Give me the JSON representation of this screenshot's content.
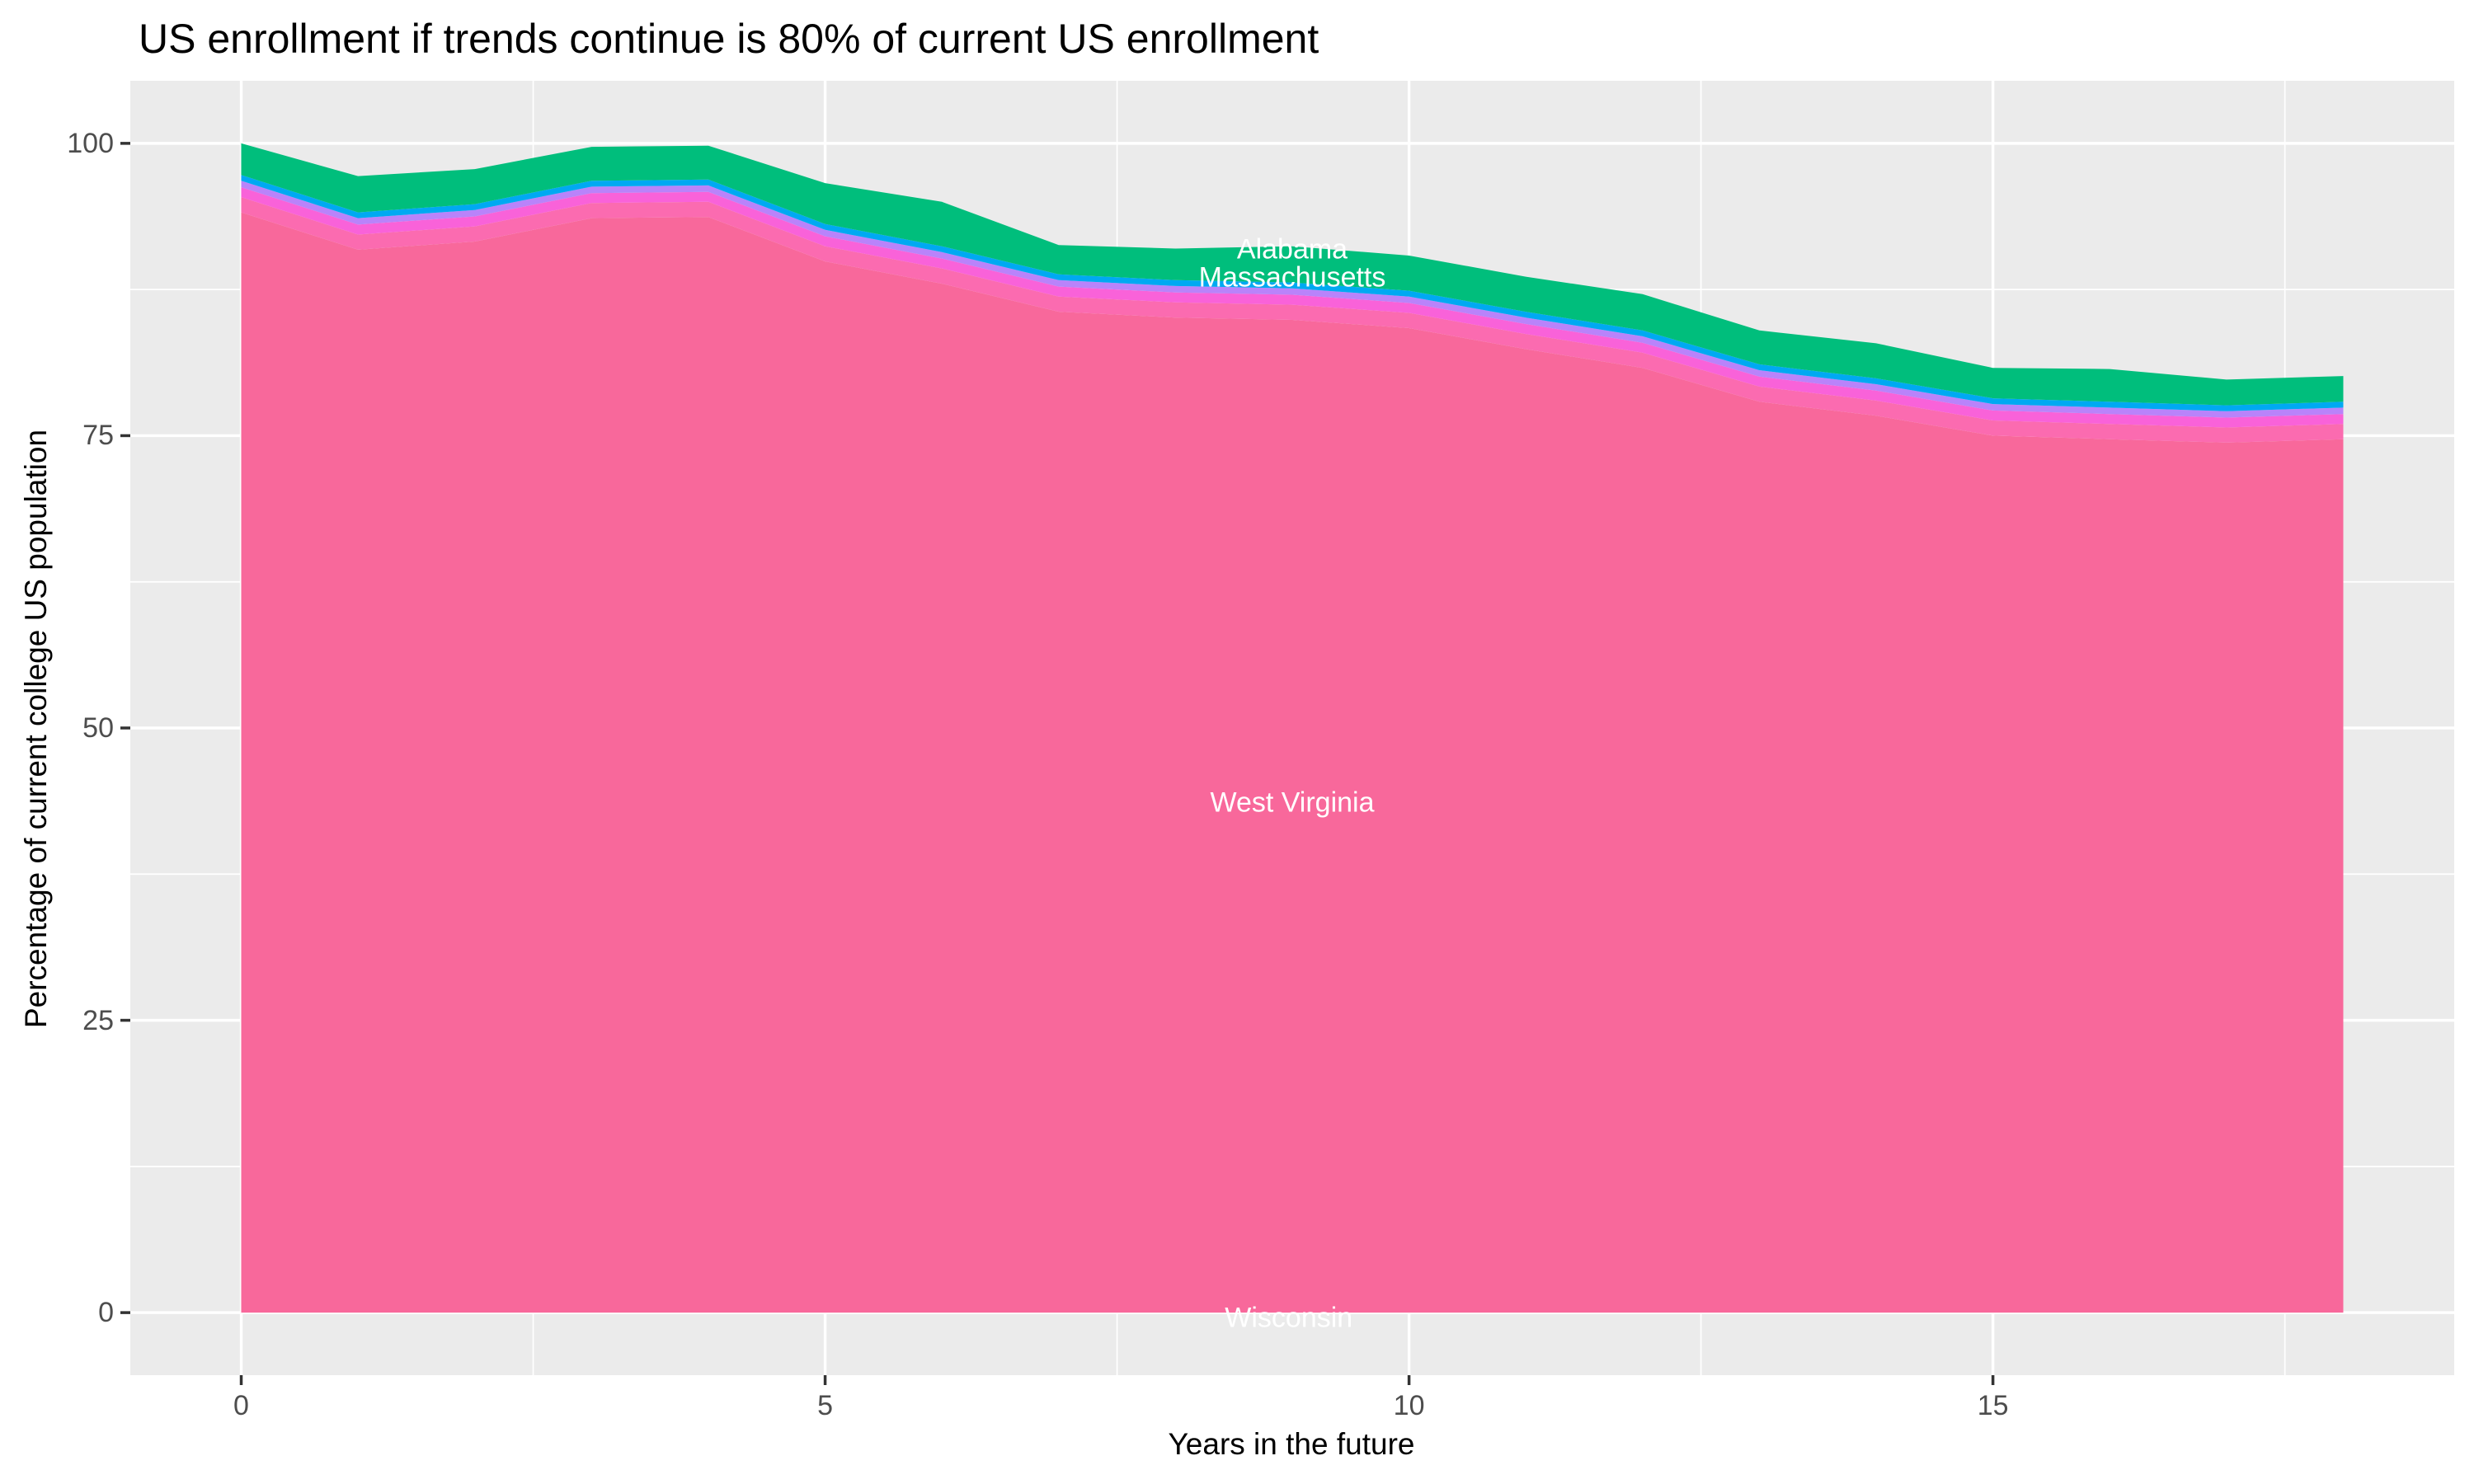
{
  "chart_data": {
    "type": "area",
    "stacked": true,
    "title": "US enrollment if trends continue is 80% of current US enrollment",
    "xlabel": "Years in the future",
    "ylabel": "Percentage of current college US population",
    "x": [
      0,
      1,
      2,
      3,
      4,
      5,
      6,
      7,
      8,
      9,
      10,
      11,
      12,
      13,
      14,
      15,
      16,
      17,
      18
    ],
    "x_ticks": [
      0,
      5,
      10,
      15
    ],
    "x_minor_ticks": [
      2.5,
      7.5,
      12.5,
      17.5
    ],
    "y_ticks": [
      0,
      25,
      50,
      75,
      100
    ],
    "y_minor_ticks": [
      12.5,
      37.5,
      62.5,
      87.5
    ],
    "xlim": [
      -0.95,
      18.95
    ],
    "ylim": [
      -5.35,
      105.35
    ],
    "grid": true,
    "legend_position": "none",
    "series": [
      {
        "name": "rose band (West Virginia / Wisconsin)",
        "color": "#F8689B",
        "values": [
          94.1,
          90.9,
          91.6,
          93.6,
          93.7,
          89.9,
          88.0,
          85.6,
          85.1,
          84.9,
          84.2,
          82.4,
          80.8,
          77.9,
          76.7,
          75.0,
          74.7,
          74.4,
          74.7
        ]
      },
      {
        "name": "light pink band",
        "color": "#FB6BB0",
        "values": [
          1.3,
          1.3,
          1.3,
          1.3,
          1.3,
          1.3,
          1.3,
          1.3,
          1.3,
          1.3,
          1.3,
          1.3,
          1.3,
          1.3,
          1.3,
          1.3,
          1.3,
          1.3,
          1.3
        ]
      },
      {
        "name": "magenta band",
        "color": "#F962D9",
        "values": [
          0.85,
          0.85,
          0.85,
          0.85,
          0.85,
          0.85,
          0.85,
          0.85,
          0.85,
          0.85,
          0.85,
          0.85,
          0.85,
          0.85,
          0.85,
          0.85,
          0.85,
          0.85,
          0.85
        ]
      },
      {
        "name": "purple band",
        "color": "#B983FA",
        "values": [
          0.55,
          0.55,
          0.55,
          0.55,
          0.55,
          0.55,
          0.55,
          0.55,
          0.55,
          0.55,
          0.55,
          0.55,
          0.55,
          0.55,
          0.55,
          0.55,
          0.55,
          0.55,
          0.55
        ]
      },
      {
        "name": "blue band",
        "color": "#00A9F2",
        "values": [
          0.5,
          0.5,
          0.5,
          0.5,
          0.5,
          0.5,
          0.5,
          0.5,
          0.5,
          0.5,
          0.5,
          0.5,
          0.5,
          0.5,
          0.5,
          0.5,
          0.5,
          0.5,
          0.5
        ]
      },
      {
        "name": "green band (Alabama)",
        "color": "#00BE7C",
        "values": [
          2.7,
          3.1,
          3.0,
          2.9,
          2.9,
          3.5,
          3.8,
          2.5,
          2.7,
          3.1,
          3.0,
          3.0,
          3.1,
          2.9,
          3.0,
          2.6,
          2.8,
          2.2,
          2.2
        ]
      }
    ],
    "stack_totals": [
      100,
      97.2,
      97.8,
      99.7,
      99.8,
      96.6,
      95.0,
      91.3,
      91.0,
      91.2,
      90.4,
      88.6,
      87.1,
      84.0,
      82.9,
      80.8,
      80.7,
      79.8,
      80.1
    ],
    "labels": [
      {
        "text": "Alabama",
        "x": 9.0,
        "y": 90.9
      },
      {
        "text": "Massachusetts",
        "x": 9.0,
        "y": 88.5
      },
      {
        "text": "West Virginia",
        "x": 9.0,
        "y": 43.6
      },
      {
        "text": "Wisconsin",
        "x": 8.97,
        "y": -0.5
      }
    ],
    "colors": {
      "panel_background": "#EBEBEB",
      "grid": "#FFFFFF",
      "tick_mark": "#333333",
      "tick_label": "#4D4D4D",
      "title_text": "#000000",
      "axis_title_text": "#000000",
      "area_label_text": "#FFFFFF"
    }
  }
}
